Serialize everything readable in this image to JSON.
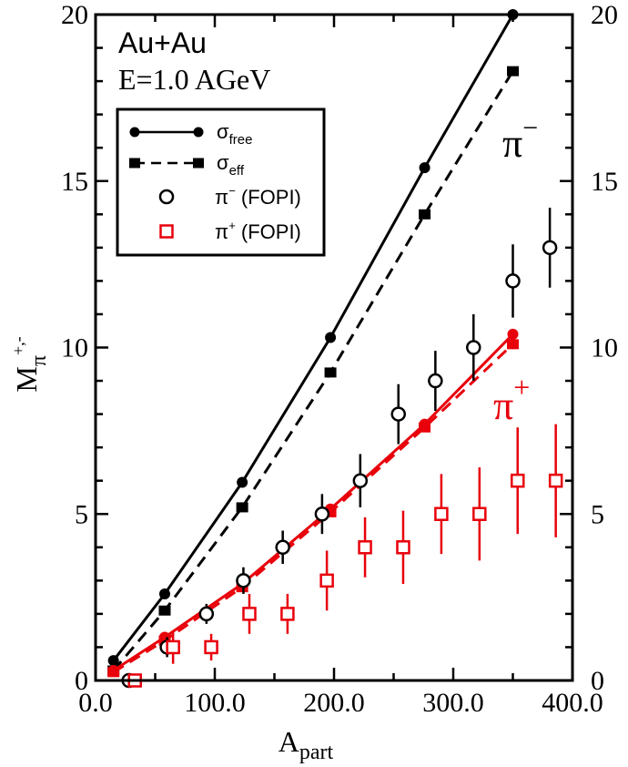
{
  "chart_data": {
    "type": "line",
    "xlabel": "A",
    "xlabel_sub": "part",
    "ylabel": "M",
    "ylabel_sub": "π",
    "ylabel_sup": "+,-",
    "xlim": [
      0,
      400
    ],
    "ylim": [
      0,
      20
    ],
    "x_ticks": [
      0,
      100,
      200,
      300,
      400
    ],
    "x_tick_labels": [
      "0.0",
      "100.0",
      "200.0",
      "300.0",
      "400.0"
    ],
    "y_ticks": [
      0,
      5,
      10,
      15,
      20
    ],
    "y_tick_labels": [
      "0",
      "5",
      "10",
      "15",
      "20"
    ],
    "grid": false,
    "legend_position": "top-left",
    "annotations": {
      "system": "Au+Au",
      "energy": "E=1.0 AGeV",
      "pi_minus_label": "π",
      "pi_minus_sup": "−",
      "pi_plus_label": "π",
      "pi_plus_sup": "+"
    },
    "colors": {
      "black": "#000000",
      "red": "#e8000b"
    },
    "legend": [
      {
        "key": "free",
        "text": "σ",
        "sub": "free"
      },
      {
        "key": "eff",
        "text": "σ",
        "sub": "eff"
      },
      {
        "key": "fopi_minus",
        "text": "π",
        "sup": "−",
        "tail": " (FOPI)"
      },
      {
        "key": "fopi_plus",
        "text": "π",
        "sup": "+",
        "tail": " (FOPI)"
      }
    ],
    "series": [
      {
        "key": "piminus_free",
        "style": "solid",
        "marker": "circle",
        "color": "black",
        "x": [
          15,
          58,
          123,
          197,
          276,
          350
        ],
        "y": [
          0.6,
          2.6,
          5.95,
          10.3,
          15.4,
          20.0
        ],
        "err": [
          0.1,
          0.1,
          0.1,
          0.1,
          0.1,
          0.1
        ]
      },
      {
        "key": "piminus_eff",
        "style": "dashed",
        "marker": "square",
        "color": "black",
        "x": [
          15,
          58,
          123,
          197,
          276,
          350
        ],
        "y": [
          0.3,
          2.1,
          5.2,
          9.25,
          14.0,
          18.3
        ],
        "err": [
          0.1,
          0.1,
          0.1,
          0.1,
          0.1,
          0.1
        ]
      },
      {
        "key": "piplus_free",
        "style": "solid",
        "marker": "circle",
        "color": "red",
        "x": [
          15,
          58,
          123,
          197,
          276,
          350
        ],
        "y": [
          0.3,
          1.3,
          2.9,
          5.15,
          7.7,
          10.4
        ],
        "err": [
          0.1,
          0.1,
          0.1,
          0.1,
          0.1,
          0.15
        ]
      },
      {
        "key": "piplus_eff",
        "style": "dashed",
        "marker": "square",
        "color": "red",
        "x": [
          15,
          58,
          123,
          197,
          276,
          350
        ],
        "y": [
          0.25,
          1.2,
          2.8,
          5.05,
          7.6,
          10.1
        ],
        "err": [
          0.1,
          0.1,
          0.1,
          0.1,
          0.1,
          0.15
        ]
      },
      {
        "key": "fopi_minus",
        "style": "none",
        "marker": "open-circle",
        "color": "black",
        "x": [
          28,
          60,
          93,
          124,
          157,
          190,
          222,
          254,
          285,
          317,
          350,
          381
        ],
        "y": [
          0,
          1,
          2,
          3,
          4,
          5,
          6,
          8,
          9,
          10,
          12,
          13
        ],
        "err": [
          0,
          0.3,
          0.3,
          0.4,
          0.5,
          0.6,
          0.8,
          0.9,
          0.9,
          1.0,
          1.1,
          1.2
        ]
      },
      {
        "key": "fopi_plus",
        "style": "none",
        "marker": "open-square",
        "color": "red",
        "x": [
          33,
          65,
          97,
          129,
          161,
          194,
          226,
          258,
          290,
          322,
          354,
          386
        ],
        "y": [
          0,
          1,
          1,
          2,
          2,
          3,
          4,
          4,
          5,
          5,
          6,
          6
        ],
        "err": [
          0,
          0.5,
          0.4,
          0.6,
          0.6,
          0.9,
          0.9,
          1.1,
          1.2,
          1.4,
          1.6,
          1.7
        ]
      }
    ]
  }
}
